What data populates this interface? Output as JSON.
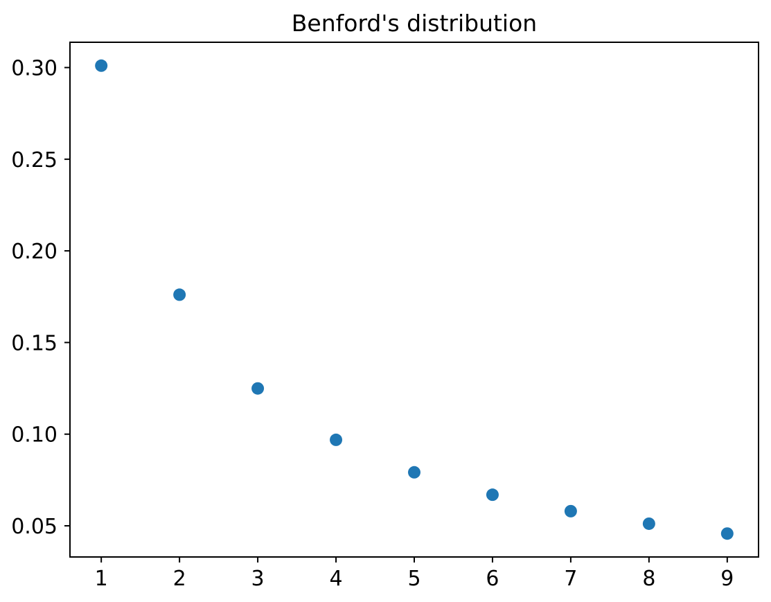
{
  "chart_data": {
    "type": "scatter",
    "title": "Benford's distribution",
    "xlabel": "",
    "ylabel": "",
    "x": [
      1,
      2,
      3,
      4,
      5,
      6,
      7,
      8,
      9
    ],
    "y": [
      0.30103,
      0.17609,
      0.12494,
      0.09691,
      0.07918,
      0.06695,
      0.05799,
      0.05115,
      0.04576
    ],
    "xlim": [
      0.6,
      9.4
    ],
    "ylim": [
      0.033,
      0.3138
    ],
    "xticks": {
      "values": [
        1,
        2,
        3,
        4,
        5,
        6,
        7,
        8,
        9
      ],
      "labels": [
        "1",
        "2",
        "3",
        "4",
        "5",
        "6",
        "7",
        "8",
        "9"
      ]
    },
    "yticks": {
      "values": [
        0.05,
        0.1,
        0.15,
        0.2,
        0.25,
        0.3
      ],
      "labels": [
        "0.05",
        "0.10",
        "0.15",
        "0.20",
        "0.25",
        "0.30"
      ]
    },
    "grid": false,
    "legend": "none",
    "marker_color": "#1f77b4",
    "marker_radius_px": 9,
    "axis_color": "#000000",
    "text_color": "#000000",
    "background_color": "#ffffff"
  }
}
